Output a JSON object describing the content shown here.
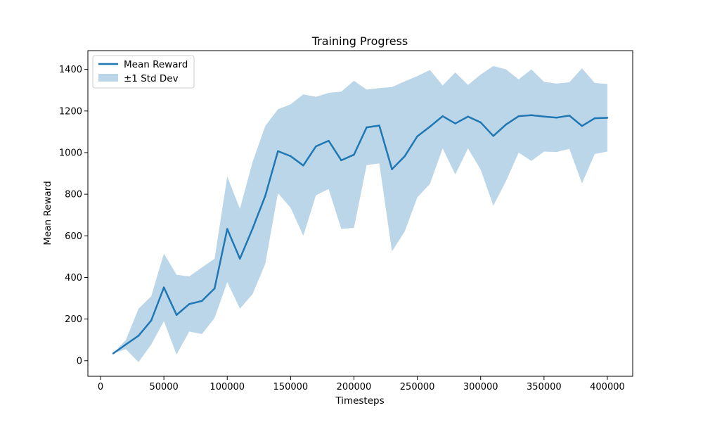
{
  "chart_data": {
    "type": "line",
    "title": "Training Progress",
    "xlabel": "Timesteps",
    "ylabel": "Mean Reward",
    "xlim": [
      -10000,
      420000
    ],
    "ylim": [
      -75,
      1490
    ],
    "xticks": [
      0,
      50000,
      100000,
      150000,
      200000,
      250000,
      300000,
      350000,
      400000
    ],
    "yticks": [
      0,
      200,
      400,
      600,
      800,
      1000,
      1200,
      1400
    ],
    "grid": false,
    "legend_position": "top-left",
    "x": [
      10000,
      20000,
      30000,
      40000,
      50000,
      60000,
      70000,
      80000,
      90000,
      100000,
      110000,
      120000,
      130000,
      140000,
      150000,
      160000,
      170000,
      180000,
      190000,
      200000,
      210000,
      220000,
      230000,
      240000,
      250000,
      260000,
      270000,
      280000,
      290000,
      300000,
      310000,
      320000,
      330000,
      340000,
      350000,
      360000,
      370000,
      380000,
      390000,
      400000
    ],
    "series": [
      {
        "name": "Mean Reward",
        "type": "line",
        "color": "#1f77b4",
        "values": [
          35,
          78,
          120,
          193,
          352,
          220,
          272,
          287,
          347,
          633,
          490,
          635,
          792,
          1007,
          983,
          938,
          1030,
          1057,
          963,
          990,
          1121,
          1130,
          920,
          982,
          1078,
          1125,
          1175,
          1140,
          1173,
          1145,
          1080,
          1135,
          1175,
          1180,
          1173,
          1168,
          1178,
          1128,
          1165,
          1167
        ]
      },
      {
        "name": "±1 Std Dev",
        "type": "band",
        "color": "#1f77b4",
        "opacity": 0.3,
        "lower": [
          35,
          55,
          -7,
          78,
          190,
          30,
          140,
          128,
          205,
          378,
          250,
          320,
          465,
          805,
          735,
          600,
          795,
          825,
          633,
          638,
          940,
          948,
          525,
          620,
          785,
          850,
          1020,
          895,
          1020,
          918,
          745,
          863,
          1000,
          960,
          1005,
          1003,
          1018,
          852,
          993,
          1005
        ],
        "upper": [
          35,
          100,
          250,
          310,
          515,
          413,
          405,
          448,
          490,
          885,
          730,
          955,
          1128,
          1208,
          1232,
          1280,
          1268,
          1287,
          1293,
          1345,
          1303,
          1310,
          1315,
          1342,
          1368,
          1397,
          1323,
          1385,
          1325,
          1375,
          1416,
          1400,
          1352,
          1400,
          1340,
          1332,
          1338,
          1405,
          1335,
          1330
        ]
      }
    ]
  }
}
